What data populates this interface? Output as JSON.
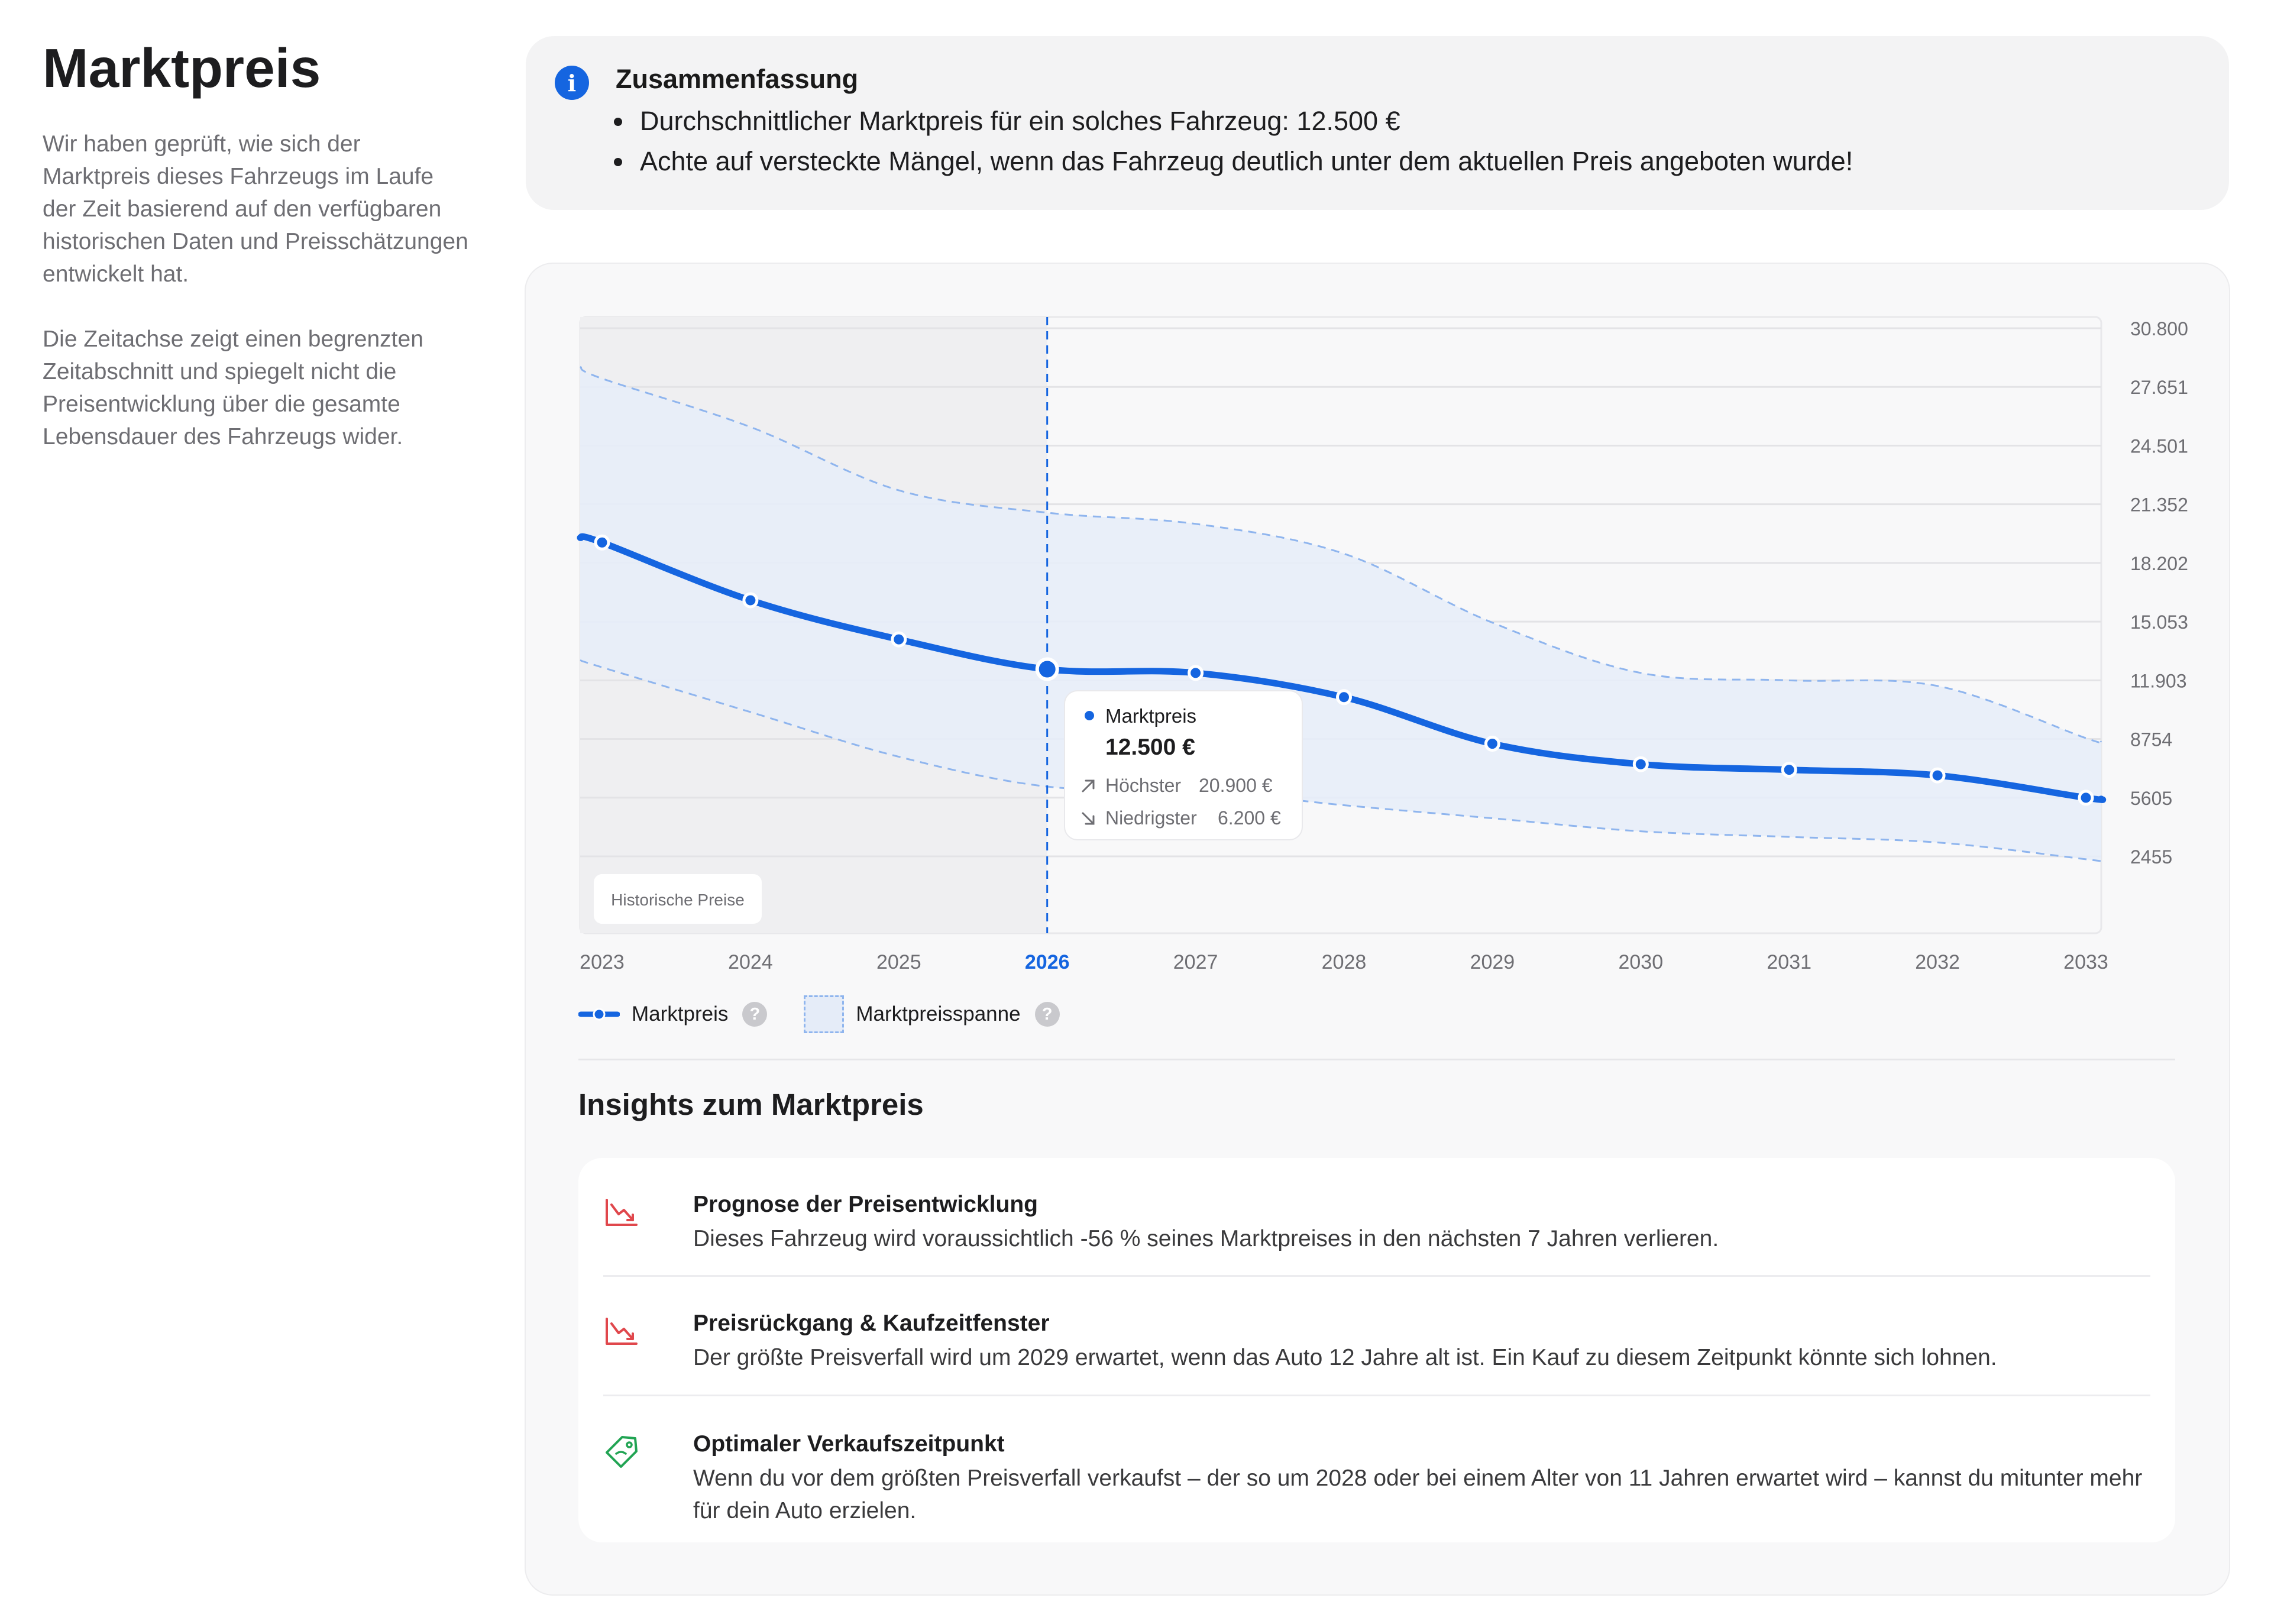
{
  "sidebar": {
    "title": "Marktpreis",
    "paragraph_1": "Wir haben geprüft, wie sich der Marktpreis dieses Fahrzeugs im Laufe der Zeit basierend auf den verfügbaren historischen Daten und Preisschätzungen entwickelt hat.",
    "paragraph_2": "Die Zeitachse zeigt einen begrenzten Zeitabschnitt und spiegelt nicht die Preisentwicklung über die gesamte Lebensdauer des Fahrzeugs wider."
  },
  "summary": {
    "title": "Zusammenfassung",
    "icon": "info-icon",
    "items": [
      "Durchschnittlicher Marktpreis für ein solches Fahrzeug: 12.500 €",
      "Achte auf versteckte Mängel, wenn das Fahrzeug deutlich unter dem aktuellen Preis angeboten wurde!"
    ]
  },
  "chart_data": {
    "type": "line",
    "x": [
      "2023",
      "2024",
      "2025",
      "2026",
      "2027",
      "2028",
      "2029",
      "2030",
      "2031",
      "2032",
      "2033"
    ],
    "ylim": [
      0,
      30800
    ],
    "yticks": [
      "30.800",
      "27.651",
      "24.501",
      "21.352",
      "18.202",
      "15.053",
      "11.903",
      "8754",
      "5605",
      "2455"
    ],
    "ytick_values": [
      30800,
      27651,
      24501,
      21352,
      18202,
      15053,
      11903,
      8754,
      5605,
      2455
    ],
    "highlight_x": "2026",
    "historic_region_label": "Historische Preise",
    "series": [
      {
        "name": "Marktpreis",
        "values": [
          19300,
          16200,
          14100,
          12500,
          12300,
          11000,
          8500,
          7400,
          7100,
          6800,
          5600
        ]
      }
    ],
    "range_upper": [
      28100,
      25500,
      22100,
      20900,
      20300,
      18700,
      15000,
      12300,
      11900,
      11600,
      8800
    ],
    "range_lower": [
      12600,
      10200,
      7800,
      6200,
      6000,
      5200,
      4500,
      3800,
      3500,
      3200,
      2300
    ],
    "tooltip": {
      "series_name": "Marktpreis",
      "value": "12.500 €",
      "high_label": "Höchster",
      "high_value": "20.900 €",
      "low_label": "Niedrigster",
      "low_value": "6.200 €"
    },
    "colors": {
      "line": "#1565e0",
      "range_fill": "#e6edf9",
      "historic_fill": "#efeff1"
    }
  },
  "legend": {
    "items": [
      {
        "label": "Marktpreis"
      },
      {
        "label": "Marktpreisspanne"
      }
    ],
    "help_glyph": "?"
  },
  "insights": {
    "title": "Insights zum Marktpreis",
    "items": [
      {
        "icon": "trending-down-icon",
        "title": "Prognose der Preisentwicklung",
        "description": "Dieses Fahrzeug wird voraussichtlich -56 % seines Marktpreises in den nächsten 7 Jahren verlieren."
      },
      {
        "icon": "trending-down-icon",
        "title": "Preisrückgang & Kaufzeitfenster",
        "description": "Der größte Preisverfall wird um 2029 erwartet, wenn das Auto 12 Jahre alt ist. Ein Kauf zu diesem Zeitpunkt könnte sich lohnen."
      },
      {
        "icon": "price-tag-icon",
        "title": "Optimaler Verkaufszeitpunkt",
        "description": "Wenn du vor dem größten Preisverfall verkaufst – der so um 2028 oder bei einem Alter von 11 Jahren erwartet wird – kannst du mitunter mehr für dein Auto erzielen."
      }
    ],
    "colors": {
      "down": "#e0474c",
      "tag": "#21a453"
    }
  }
}
